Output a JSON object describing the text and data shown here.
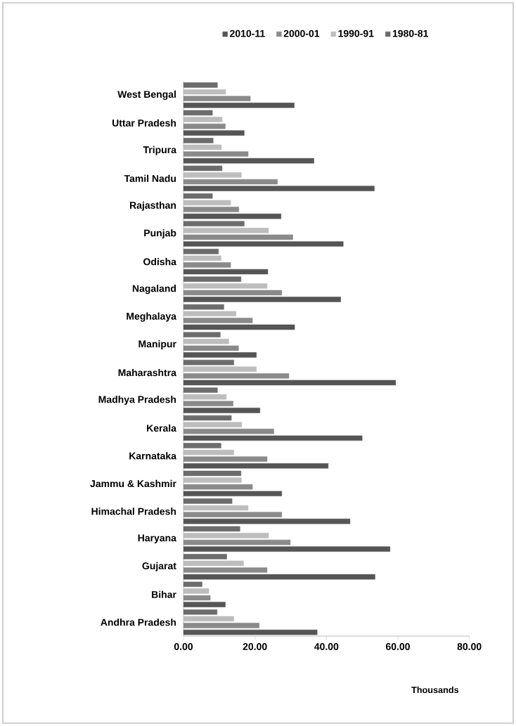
{
  "chart_data": {
    "type": "bar",
    "orientation": "horizontal",
    "legend": "top",
    "xlabel": "Thousands",
    "categories": [
      "West Bengal",
      "Uttar Pradesh",
      "Tripura",
      "Tamil Nadu",
      "Rajasthan",
      "Punjab",
      "Odisha",
      "Nagaland",
      "Meghalaya",
      "Manipur",
      "Maharashtra",
      "Madhya Pradesh",
      "Kerala",
      "Karnataka",
      "Jammu & Kashmir",
      "Himachal Pradesh",
      "Haryana",
      "Gujarat",
      "Bihar",
      "Andhra Pradesh"
    ],
    "series": [
      {
        "name": "2010-11",
        "color": "#555555",
        "values": [
          31.0,
          17.0,
          36.5,
          53.4,
          27.3,
          44.7,
          23.6,
          44.0,
          31.1,
          20.4,
          59.4,
          21.4,
          50.0,
          40.5,
          27.5,
          46.6,
          57.8,
          53.6,
          11.7,
          37.4
        ]
      },
      {
        "name": "2000-01",
        "color": "#8a8a8a",
        "values": [
          18.7,
          11.7,
          18.1,
          26.3,
          15.5,
          30.6,
          13.2,
          27.5,
          19.3,
          15.4,
          29.5,
          13.9,
          25.3,
          23.4,
          19.3,
          27.5,
          29.9,
          23.4,
          7.5,
          21.2
        ]
      },
      {
        "name": "1990-91",
        "color": "#bdbdbd",
        "values": [
          11.8,
          10.8,
          10.6,
          16.2,
          13.2,
          23.8,
          10.5,
          23.4,
          14.7,
          12.7,
          20.4,
          12.0,
          16.3,
          14.1,
          16.2,
          18.1,
          23.8,
          16.8,
          7.1,
          14.1
        ]
      },
      {
        "name": "1980-81",
        "color": "#6c6c6c",
        "values": [
          9.5,
          8.1,
          8.3,
          10.8,
          8.1,
          17.0,
          9.8,
          16.1,
          11.3,
          10.3,
          14.1,
          9.5,
          13.4,
          10.5,
          16.1,
          13.6,
          15.8,
          12.1,
          5.2,
          9.4
        ]
      }
    ],
    "xlim": [
      0,
      80
    ],
    "xticks": [
      {
        "value": 0,
        "label": "0.00"
      },
      {
        "value": 20,
        "label": "20.00"
      },
      {
        "value": 40,
        "label": "40.00"
      },
      {
        "value": 60,
        "label": "60.00"
      },
      {
        "value": 80,
        "label": "80.00"
      }
    ]
  }
}
